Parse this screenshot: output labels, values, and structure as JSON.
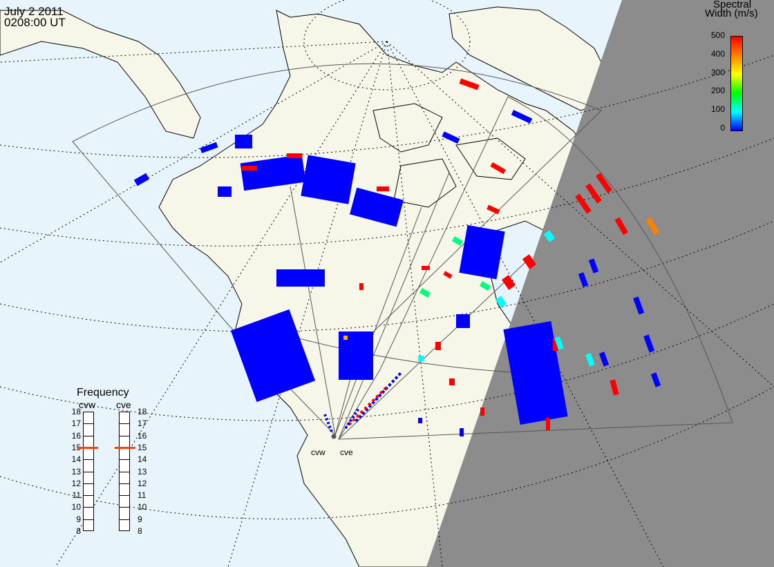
{
  "header": {
    "date": "July 2 2011",
    "time": "0208:00 UT"
  },
  "colorbar": {
    "title_line1": "Spectral",
    "title_line2": "Width (m/s)",
    "ticks": [
      "500",
      "400",
      "300",
      "200",
      "100",
      "0"
    ],
    "colors": [
      "#ff0000",
      "#ff8000",
      "#ffff00",
      "#00ff00",
      "#00ffff",
      "#0000ff"
    ]
  },
  "frequency": {
    "title": "Frequency",
    "cvw_label": "cvw",
    "cve_label": "cve",
    "ticks": [
      "18",
      "17",
      "16",
      "15",
      "14",
      "13",
      "12",
      "11",
      "10",
      "9",
      "8"
    ],
    "cvw_value": 15,
    "cve_value": 15,
    "marker_color": "#ff4000"
  },
  "sites": {
    "cvw": "cvw",
    "cve": "cve"
  },
  "colors": {
    "ocean": "#e8f4fb",
    "land": "#f7f7e9",
    "night": "#8c8c8c",
    "low_width": "#0000ff",
    "high_width": "#ff0000"
  }
}
